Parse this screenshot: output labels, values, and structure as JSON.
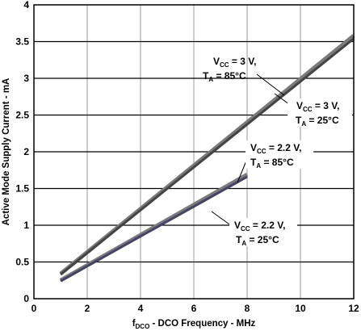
{
  "chart_data": {
    "type": "line",
    "title": "",
    "xlabel": {
      "prefix": "f",
      "sub": "DCO",
      "rest": " - DCO Frequency - MHz"
    },
    "ylabel": "Active Mode Supply Current - mA",
    "xlim": [
      0,
      12
    ],
    "ylim": [
      0,
      4
    ],
    "grid": true,
    "xticks": [
      "0",
      "2",
      "4",
      "6",
      "8",
      "10",
      "12"
    ],
    "yticks": [
      "0",
      "0.5",
      "1",
      "1.5",
      "2",
      "2.5",
      "3",
      "3.5",
      "4"
    ],
    "series": [
      {
        "name": "VCC = 3 V, TA = 85°C",
        "color": "#7a7a7a",
        "x": [
          1,
          12
        ],
        "y": [
          0.34,
          3.58
        ]
      },
      {
        "name": "VCC = 3 V, TA = 25°C",
        "color": "#444444",
        "x": [
          1,
          12
        ],
        "y": [
          0.33,
          3.54
        ]
      },
      {
        "name": "VCC = 2.2 V, TA = 85°C",
        "color": "#7a7a7a",
        "x": [
          1,
          8
        ],
        "y": [
          0.25,
          1.69
        ]
      },
      {
        "name": "VCC = 2.2 V, TA = 25°C",
        "color": "#444466",
        "x": [
          1,
          8
        ],
        "y": [
          0.24,
          1.66
        ]
      }
    ],
    "annotations": [
      {
        "v_label": "V",
        "v_sub": "CC",
        "v_value": " = 3 V,",
        "t_label": "T",
        "t_sub": "A",
        "t_value": " = 85°C"
      },
      {
        "v_label": "V",
        "v_sub": "CC",
        "v_value": " = 3 V,",
        "t_label": "T",
        "t_sub": "A",
        "t_value": " = 25°C"
      },
      {
        "v_label": "V",
        "v_sub": "CC",
        "v_value": " = 2.2 V,",
        "t_label": "T",
        "t_sub": "A",
        "t_value": " = 85°C"
      },
      {
        "v_label": "V",
        "v_sub": "CC",
        "v_value": " = 2.2 V,",
        "t_label": "T",
        "t_sub": "A",
        "t_value": " = 25°C"
      }
    ]
  }
}
